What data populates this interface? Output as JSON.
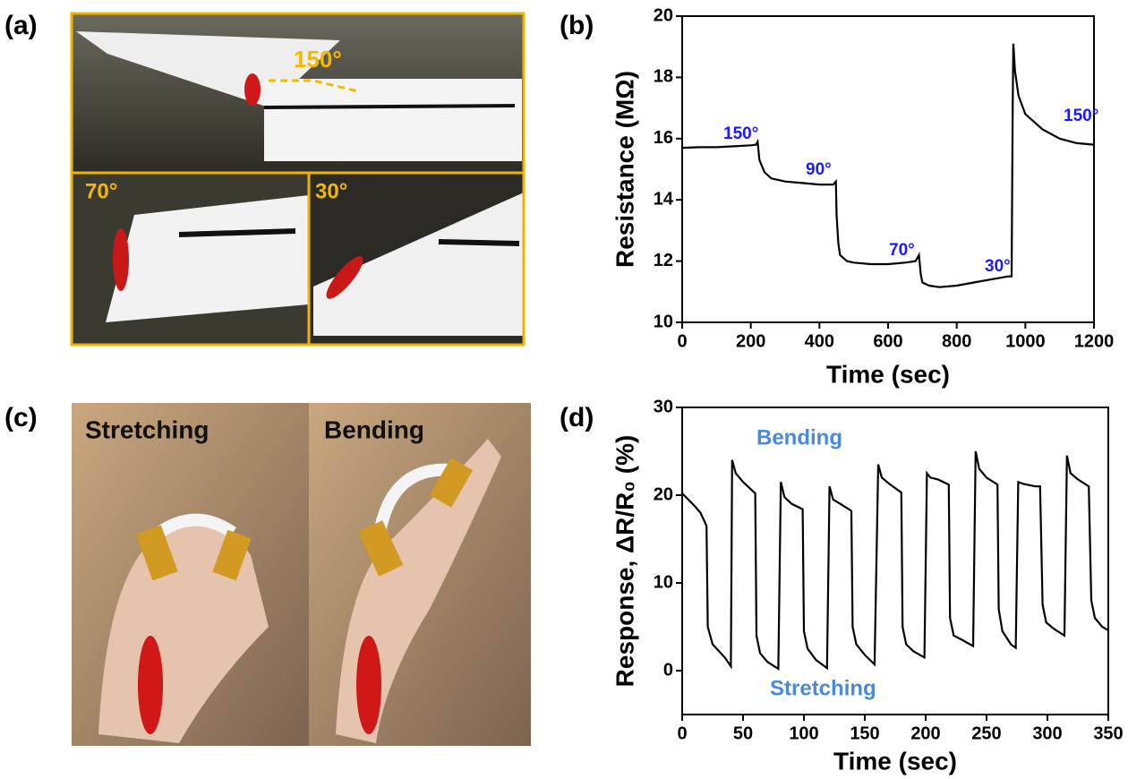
{
  "panel_labels": [
    "(a)",
    "(b)",
    "(c)",
    "(d)"
  ],
  "photos_a": {
    "labels": [
      "150°",
      "70°",
      "30°"
    ]
  },
  "photos_c": {
    "labels": [
      "Stretching",
      "Bending"
    ]
  },
  "chart_data": [
    {
      "type": "line",
      "xlabel": "Time (sec)",
      "ylabel": "Resistance (MΩ)",
      "xlim": [
        0,
        1200
      ],
      "ylim": [
        10,
        20
      ],
      "xticks": [
        0,
        200,
        400,
        600,
        800,
        1000,
        1200
      ],
      "yticks": [
        10,
        12,
        14,
        16,
        18,
        20
      ],
      "color": "#000000",
      "annotation_color": "#1a1aff",
      "annotations": [
        "150°",
        "90°",
        "70°",
        "30°",
        "150°"
      ],
      "x": [
        0,
        50,
        100,
        150,
        200,
        215,
        220,
        225,
        240,
        260,
        300,
        350,
        400,
        440,
        448,
        450,
        455,
        460,
        480,
        500,
        550,
        600,
        650,
        680,
        690,
        695,
        700,
        720,
        750,
        800,
        850,
        900,
        950,
        960,
        963,
        965,
        970,
        980,
        1000,
        1050,
        1100,
        1150,
        1200
      ],
      "values": [
        15.7,
        15.72,
        15.72,
        15.75,
        15.78,
        15.8,
        15.9,
        15.3,
        14.9,
        14.7,
        14.6,
        14.55,
        14.5,
        14.5,
        14.6,
        13.5,
        12.6,
        12.2,
        12.0,
        11.95,
        11.9,
        11.9,
        11.95,
        12.0,
        12.2,
        11.6,
        11.3,
        11.2,
        11.15,
        11.2,
        11.3,
        11.4,
        11.5,
        11.5,
        17.0,
        19.1,
        18.2,
        17.4,
        16.8,
        16.3,
        16.0,
        15.85,
        15.8
      ]
    },
    {
      "type": "line",
      "xlabel": "Time (sec)",
      "ylabel": "Response, ΔR/R₀ (%)",
      "xlim": [
        0,
        350
      ],
      "ylim": [
        -5,
        30
      ],
      "xticks": [
        0,
        50,
        100,
        150,
        200,
        250,
        300,
        350
      ],
      "yticks": [
        0,
        10,
        20,
        30
      ],
      "color": "#000000",
      "annotation_color": "#4a8ad8",
      "annotations": [
        "Bending",
        "Stretching"
      ],
      "x": [
        0,
        5,
        10,
        15,
        20,
        21,
        25,
        35,
        40,
        41,
        44,
        50,
        60,
        61,
        64,
        70,
        79,
        81,
        84,
        90,
        99,
        100,
        103,
        110,
        119,
        121,
        124,
        130,
        139,
        140,
        143,
        150,
        158,
        161,
        164,
        170,
        180,
        181,
        184,
        190,
        199,
        201,
        204,
        210,
        219,
        220,
        223,
        230,
        239,
        241,
        244,
        250,
        259,
        260,
        263,
        270,
        274,
        276,
        280,
        290,
        294,
        296,
        299,
        305,
        314,
        316,
        319,
        325,
        334,
        336,
        339,
        345,
        350
      ],
      "values": [
        20.2,
        19.5,
        18.8,
        18,
        16.5,
        5,
        3,
        1.5,
        0.5,
        24,
        22.5,
        21.5,
        20.2,
        4,
        2,
        1,
        0.2,
        21.5,
        19.8,
        19,
        18.4,
        4.5,
        2.5,
        1.2,
        0.3,
        21,
        19.5,
        19,
        18.2,
        5,
        3,
        1.8,
        0.7,
        23.5,
        22,
        21.3,
        20.3,
        5,
        3,
        2.2,
        1.5,
        22.5,
        22,
        21.8,
        21.2,
        6,
        4,
        3.5,
        2.8,
        25,
        23,
        22,
        21.2,
        7,
        4.5,
        3,
        2.6,
        21.5,
        21.3,
        21,
        21,
        7.5,
        5.5,
        4.8,
        4,
        24.5,
        22.5,
        21.8,
        21,
        8,
        6,
        5,
        4.6
      ]
    }
  ]
}
